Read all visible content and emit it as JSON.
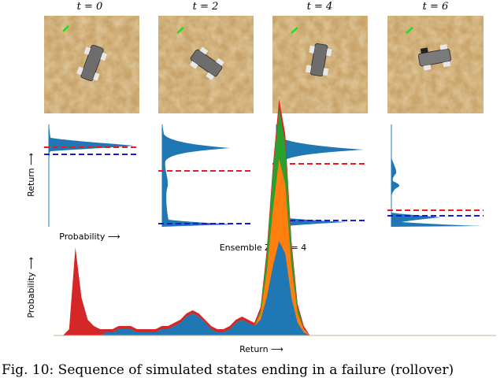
{
  "frames": [
    {
      "label": "t = 0",
      "car_angle": 20
    },
    {
      "label": "t = 2",
      "car_angle": -55
    },
    {
      "label": "t = 4",
      "car_angle": 10
    },
    {
      "label": "t = 6",
      "car_angle": -100
    }
  ],
  "small_axes": {
    "ylabel": "Return ⟶",
    "xlabel": "Probability ⟶"
  },
  "ensemble": {
    "title": "Ensemble Z at t = 4",
    "xlabel": "Return ⟶",
    "ylabel": "Probability ⟶"
  },
  "caption": "Fig. 10: Sequence of simulated states ending in a failure (rollover)",
  "colors": {
    "blue": "#1f77b4",
    "orange": "#ff7f0e",
    "green": "#2ca02c",
    "red": "#d62728",
    "sand": "#c9a46a",
    "dash_red": "#e8191f",
    "dash_blue": "#1a1ad6"
  },
  "chart_data": {
    "type": "area",
    "title": "Ensemble Z at t = 4",
    "xlabel": "Return ⟶",
    "ylabel": "Probability ⟶",
    "x": [
      0,
      2,
      4,
      6,
      8,
      10,
      12,
      14,
      16,
      18,
      20,
      22,
      24,
      26,
      28,
      30,
      32,
      34,
      36,
      38,
      40,
      42,
      44,
      46,
      48,
      50,
      52,
      54,
      56,
      58,
      60,
      62,
      64,
      66,
      68,
      70,
      72,
      74,
      76,
      78,
      80,
      82,
      84,
      86,
      88,
      90,
      92,
      94,
      96,
      98,
      100
    ],
    "series": [
      {
        "name": "",
        "color": "blue",
        "values": [
          0,
          0,
          0,
          0,
          0,
          0,
          0,
          0.01,
          0.01,
          0.02,
          0.02,
          0.02,
          0.01,
          0.01,
          0.01,
          0.01,
          0.02,
          0.02,
          0.03,
          0.04,
          0.06,
          0.07,
          0.06,
          0.04,
          0.02,
          0.01,
          0.01,
          0.02,
          0.04,
          0.05,
          0.04,
          0.03,
          0.05,
          0.12,
          0.22,
          0.3,
          0.26,
          0.12,
          0.04,
          0.01,
          0,
          0,
          0,
          0,
          0,
          0,
          0,
          0,
          0,
          0,
          0
        ]
      },
      {
        "name": "",
        "color": "orange",
        "values": [
          0,
          0,
          0,
          0,
          0,
          0,
          0,
          0,
          0,
          0,
          0,
          0,
          0,
          0,
          0,
          0,
          0,
          0,
          0,
          0,
          0,
          0,
          0,
          0,
          0,
          0,
          0,
          0,
          0,
          0,
          0,
          0,
          0.02,
          0.08,
          0.18,
          0.26,
          0.22,
          0.1,
          0.03,
          0.01,
          0,
          0,
          0,
          0,
          0,
          0,
          0,
          0,
          0,
          0,
          0
        ]
      },
      {
        "name": "",
        "color": "green",
        "values": [
          0,
          0,
          0,
          0,
          0,
          0,
          0,
          0,
          0,
          0,
          0,
          0,
          0,
          0,
          0,
          0,
          0,
          0,
          0,
          0,
          0,
          0,
          0,
          0,
          0,
          0,
          0,
          0,
          0,
          0,
          0,
          0,
          0.01,
          0.05,
          0.12,
          0.16,
          0.13,
          0.06,
          0.02,
          0,
          0,
          0,
          0,
          0,
          0,
          0,
          0,
          0,
          0,
          0,
          0
        ]
      },
      {
        "name": "",
        "color": "red",
        "values": [
          0,
          0.02,
          0.28,
          0.12,
          0.05,
          0.03,
          0.02,
          0.01,
          0.01,
          0.01,
          0.01,
          0.01,
          0.01,
          0.01,
          0.01,
          0.01,
          0.01,
          0.01,
          0.01,
          0.01,
          0.01,
          0.01,
          0.01,
          0.01,
          0.01,
          0.01,
          0.01,
          0.01,
          0.01,
          0.01,
          0.01,
          0.01,
          0.01,
          0.02,
          0.02,
          0.03,
          0.03,
          0.02,
          0.01,
          0.01,
          0,
          0,
          0,
          0,
          0,
          0,
          0,
          0,
          0,
          0,
          0
        ]
      }
    ],
    "small_panels": [
      {
        "label": "t = 0",
        "mean_red": 0.82,
        "mean_blue": 0.78
      },
      {
        "label": "t = 2",
        "mean_red": 0.53,
        "mean_blue": 0.03
      },
      {
        "label": "t = 4",
        "mean_red": 0.6,
        "mean_blue": 0.05
      },
      {
        "label": "t = 6",
        "mean_red": 0.15,
        "mean_blue": 0.05
      }
    ]
  }
}
